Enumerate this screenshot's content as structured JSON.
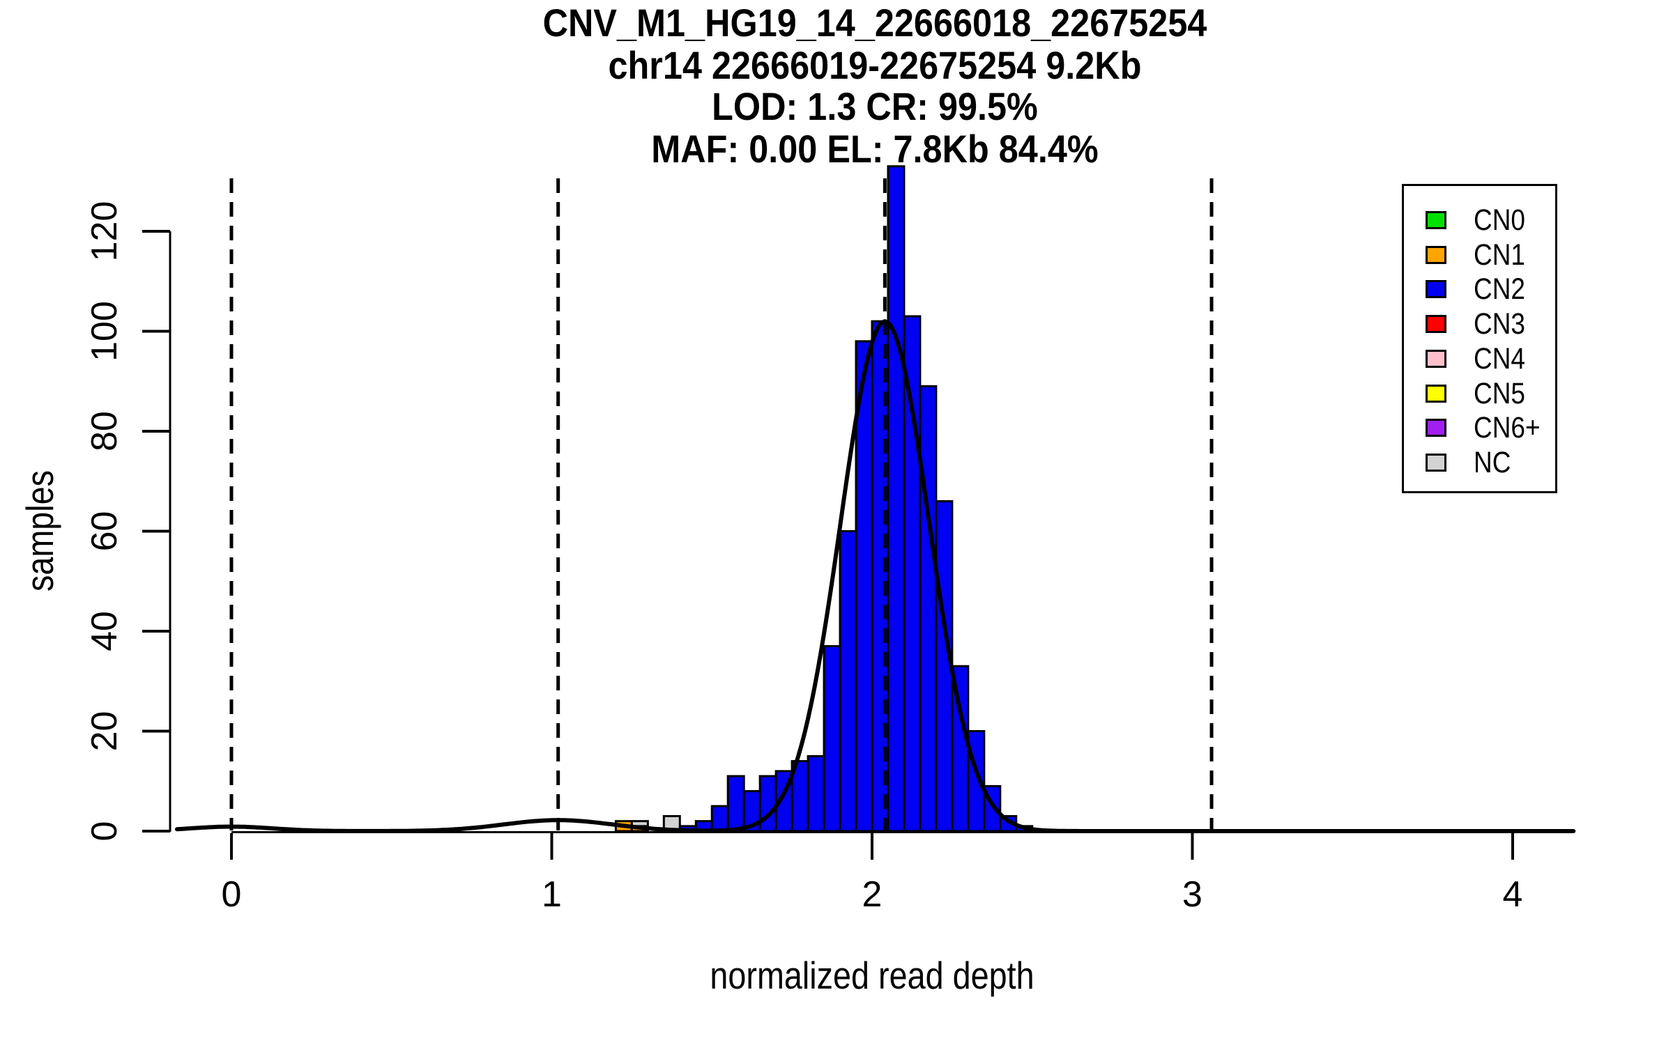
{
  "title": {
    "line1": "CNV_M1_HG19_14_22666018_22675254",
    "line2": "chr14 22666019-22675254 9.2Kb",
    "line3": "LOD: 1.3 CR: 99.5%",
    "line4": "MAF: 0.00 EL: 7.8Kb 84.4%"
  },
  "chart_data": {
    "type": "bar",
    "subtype": "stacked-histogram-with-density",
    "title": "CNV_M1_HG19_14_22666018_22675254",
    "xlabel": "normalized read depth",
    "ylabel": "samples",
    "x_ticks": [
      0,
      1,
      2,
      3,
      4
    ],
    "y_ticks": [
      0,
      20,
      40,
      60,
      80,
      100,
      120
    ],
    "xlim": [
      -0.17,
      4.19
    ],
    "ylim": [
      0,
      133
    ],
    "grid": false,
    "legend_position": "top-right",
    "bin_width": 0.05,
    "bars": [
      {
        "x": 1.2,
        "segments": [
          {
            "cn": "CN1",
            "count": 2
          }
        ]
      },
      {
        "x": 1.25,
        "segments": [
          {
            "cn": "CN1",
            "count": 1
          },
          {
            "cn": "NC",
            "count": 1
          }
        ]
      },
      {
        "x": 1.35,
        "segments": [
          {
            "cn": "NC",
            "count": 3
          }
        ]
      },
      {
        "x": 1.4,
        "segments": [
          {
            "cn": "CN2",
            "count": 1
          }
        ]
      },
      {
        "x": 1.45,
        "segments": [
          {
            "cn": "CN2",
            "count": 2
          }
        ]
      },
      {
        "x": 1.5,
        "segments": [
          {
            "cn": "CN2",
            "count": 5
          }
        ]
      },
      {
        "x": 1.55,
        "segments": [
          {
            "cn": "CN2",
            "count": 11
          }
        ]
      },
      {
        "x": 1.6,
        "segments": [
          {
            "cn": "CN2",
            "count": 8
          }
        ]
      },
      {
        "x": 1.65,
        "segments": [
          {
            "cn": "CN2",
            "count": 11
          }
        ]
      },
      {
        "x": 1.7,
        "segments": [
          {
            "cn": "CN2",
            "count": 12
          }
        ]
      },
      {
        "x": 1.75,
        "segments": [
          {
            "cn": "CN2",
            "count": 14
          }
        ]
      },
      {
        "x": 1.8,
        "segments": [
          {
            "cn": "CN2",
            "count": 15
          }
        ]
      },
      {
        "x": 1.85,
        "segments": [
          {
            "cn": "CN2",
            "count": 37
          }
        ]
      },
      {
        "x": 1.9,
        "segments": [
          {
            "cn": "CN2",
            "count": 60
          }
        ]
      },
      {
        "x": 1.95,
        "segments": [
          {
            "cn": "CN2",
            "count": 98
          }
        ]
      },
      {
        "x": 2.0,
        "segments": [
          {
            "cn": "CN2",
            "count": 102
          }
        ]
      },
      {
        "x": 2.05,
        "segments": [
          {
            "cn": "CN2",
            "count": 133
          }
        ]
      },
      {
        "x": 2.1,
        "segments": [
          {
            "cn": "CN2",
            "count": 103
          }
        ]
      },
      {
        "x": 2.15,
        "segments": [
          {
            "cn": "CN2",
            "count": 89
          }
        ]
      },
      {
        "x": 2.2,
        "segments": [
          {
            "cn": "CN2",
            "count": 66
          }
        ]
      },
      {
        "x": 2.25,
        "segments": [
          {
            "cn": "CN2",
            "count": 33
          }
        ]
      },
      {
        "x": 2.3,
        "segments": [
          {
            "cn": "CN2",
            "count": 20
          }
        ]
      },
      {
        "x": 2.35,
        "segments": [
          {
            "cn": "CN2",
            "count": 9
          }
        ]
      },
      {
        "x": 2.4,
        "segments": [
          {
            "cn": "CN2",
            "count": 3
          }
        ]
      },
      {
        "x": 2.45,
        "segments": [
          {
            "cn": "CN2",
            "count": 1
          }
        ]
      }
    ],
    "density_components": [
      {
        "amplitude": 0.9,
        "mean": 0.0,
        "sd": 0.13
      },
      {
        "amplitude": 2.2,
        "mean": 1.02,
        "sd": 0.17
      },
      {
        "amplitude": 102,
        "mean": 2.04,
        "sd": 0.138
      }
    ],
    "cluster_mean_lines_x": [
      0.0,
      1.02,
      2.04,
      3.06
    ],
    "colors": {
      "CN0": "#00E000",
      "CN1": "#FFA500",
      "CN2": "#0000F2",
      "CN3": "#FF0000",
      "CN4": "#FFC0CB",
      "CN5": "#FFFF00",
      "CN6+": "#A020F0",
      "NC": "#D3D3D3",
      "curve": "#000000",
      "axis": "#000000"
    },
    "legend": {
      "items": [
        {
          "label": "CN0",
          "color_key": "CN0"
        },
        {
          "label": "CN1",
          "color_key": "CN1"
        },
        {
          "label": "CN2",
          "color_key": "CN2"
        },
        {
          "label": "CN3",
          "color_key": "CN3"
        },
        {
          "label": "CN4",
          "color_key": "CN4"
        },
        {
          "label": "CN5",
          "color_key": "CN5"
        },
        {
          "label": "CN6+",
          "color_key": "CN6+"
        },
        {
          "label": "NC",
          "color_key": "NC"
        }
      ]
    }
  }
}
